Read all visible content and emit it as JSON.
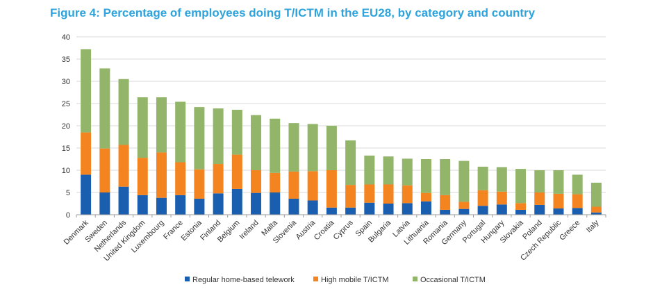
{
  "title": "Figure 4: Percentage of employees doing T/ICTM in the EU28, by category and country",
  "chart_data": {
    "type": "bar",
    "stacked": true,
    "categories": [
      "Denmark",
      "Sweden",
      "Netherlands",
      "United Kingdom",
      "Luxembourg",
      "France",
      "Estonia",
      "Finland",
      "Belgium",
      "Ireland",
      "Malta",
      "Slovenia",
      "Austria",
      "Croatia",
      "Cyprus",
      "Spain",
      "Bulgaria",
      "Latvia",
      "Lithuania",
      "Romania",
      "Germany",
      "Portugal",
      "Hungary",
      "Slovakia",
      "Poland",
      "Czech Republic",
      "Greece",
      "Italy"
    ],
    "series": [
      {
        "name": "Regular home-based telework",
        "color": "#1a5eb0",
        "values": [
          9.0,
          5.0,
          6.3,
          4.4,
          3.8,
          4.4,
          3.6,
          4.8,
          5.8,
          4.9,
          5.0,
          3.6,
          3.2,
          1.6,
          1.6,
          2.7,
          2.5,
          2.6,
          3.0,
          1.1,
          1.3,
          2.0,
          2.3,
          1.1,
          2.2,
          1.4,
          1.5,
          0.5
        ]
      },
      {
        "name": "High mobile T/ICTM",
        "color": "#f4841f",
        "values": [
          9.5,
          9.9,
          9.4,
          8.4,
          10.2,
          7.4,
          6.6,
          6.6,
          7.7,
          5.1,
          4.4,
          6.1,
          6.6,
          8.4,
          5.1,
          4.1,
          4.3,
          4.0,
          1.9,
          3.3,
          1.6,
          3.5,
          2.9,
          1.5,
          2.8,
          3.3,
          3.1,
          1.3
        ]
      },
      {
        "name": "Occasional T/ICTM",
        "color": "#92b56a",
        "values": [
          18.7,
          18.0,
          14.8,
          13.6,
          12.4,
          13.6,
          14.0,
          12.5,
          10.1,
          12.4,
          12.2,
          10.9,
          10.6,
          10.0,
          10.0,
          6.5,
          6.3,
          6.0,
          7.6,
          8.1,
          9.2,
          5.3,
          5.5,
          7.7,
          5.0,
          5.3,
          4.4,
          5.4
        ]
      }
    ],
    "ylim": [
      0,
      40
    ],
    "yticks": [
      "0",
      "5",
      "10",
      "15",
      "20",
      "25",
      "30",
      "35",
      "40"
    ],
    "xlabel": "",
    "ylabel": "",
    "grid": true,
    "legend": "bottom"
  }
}
